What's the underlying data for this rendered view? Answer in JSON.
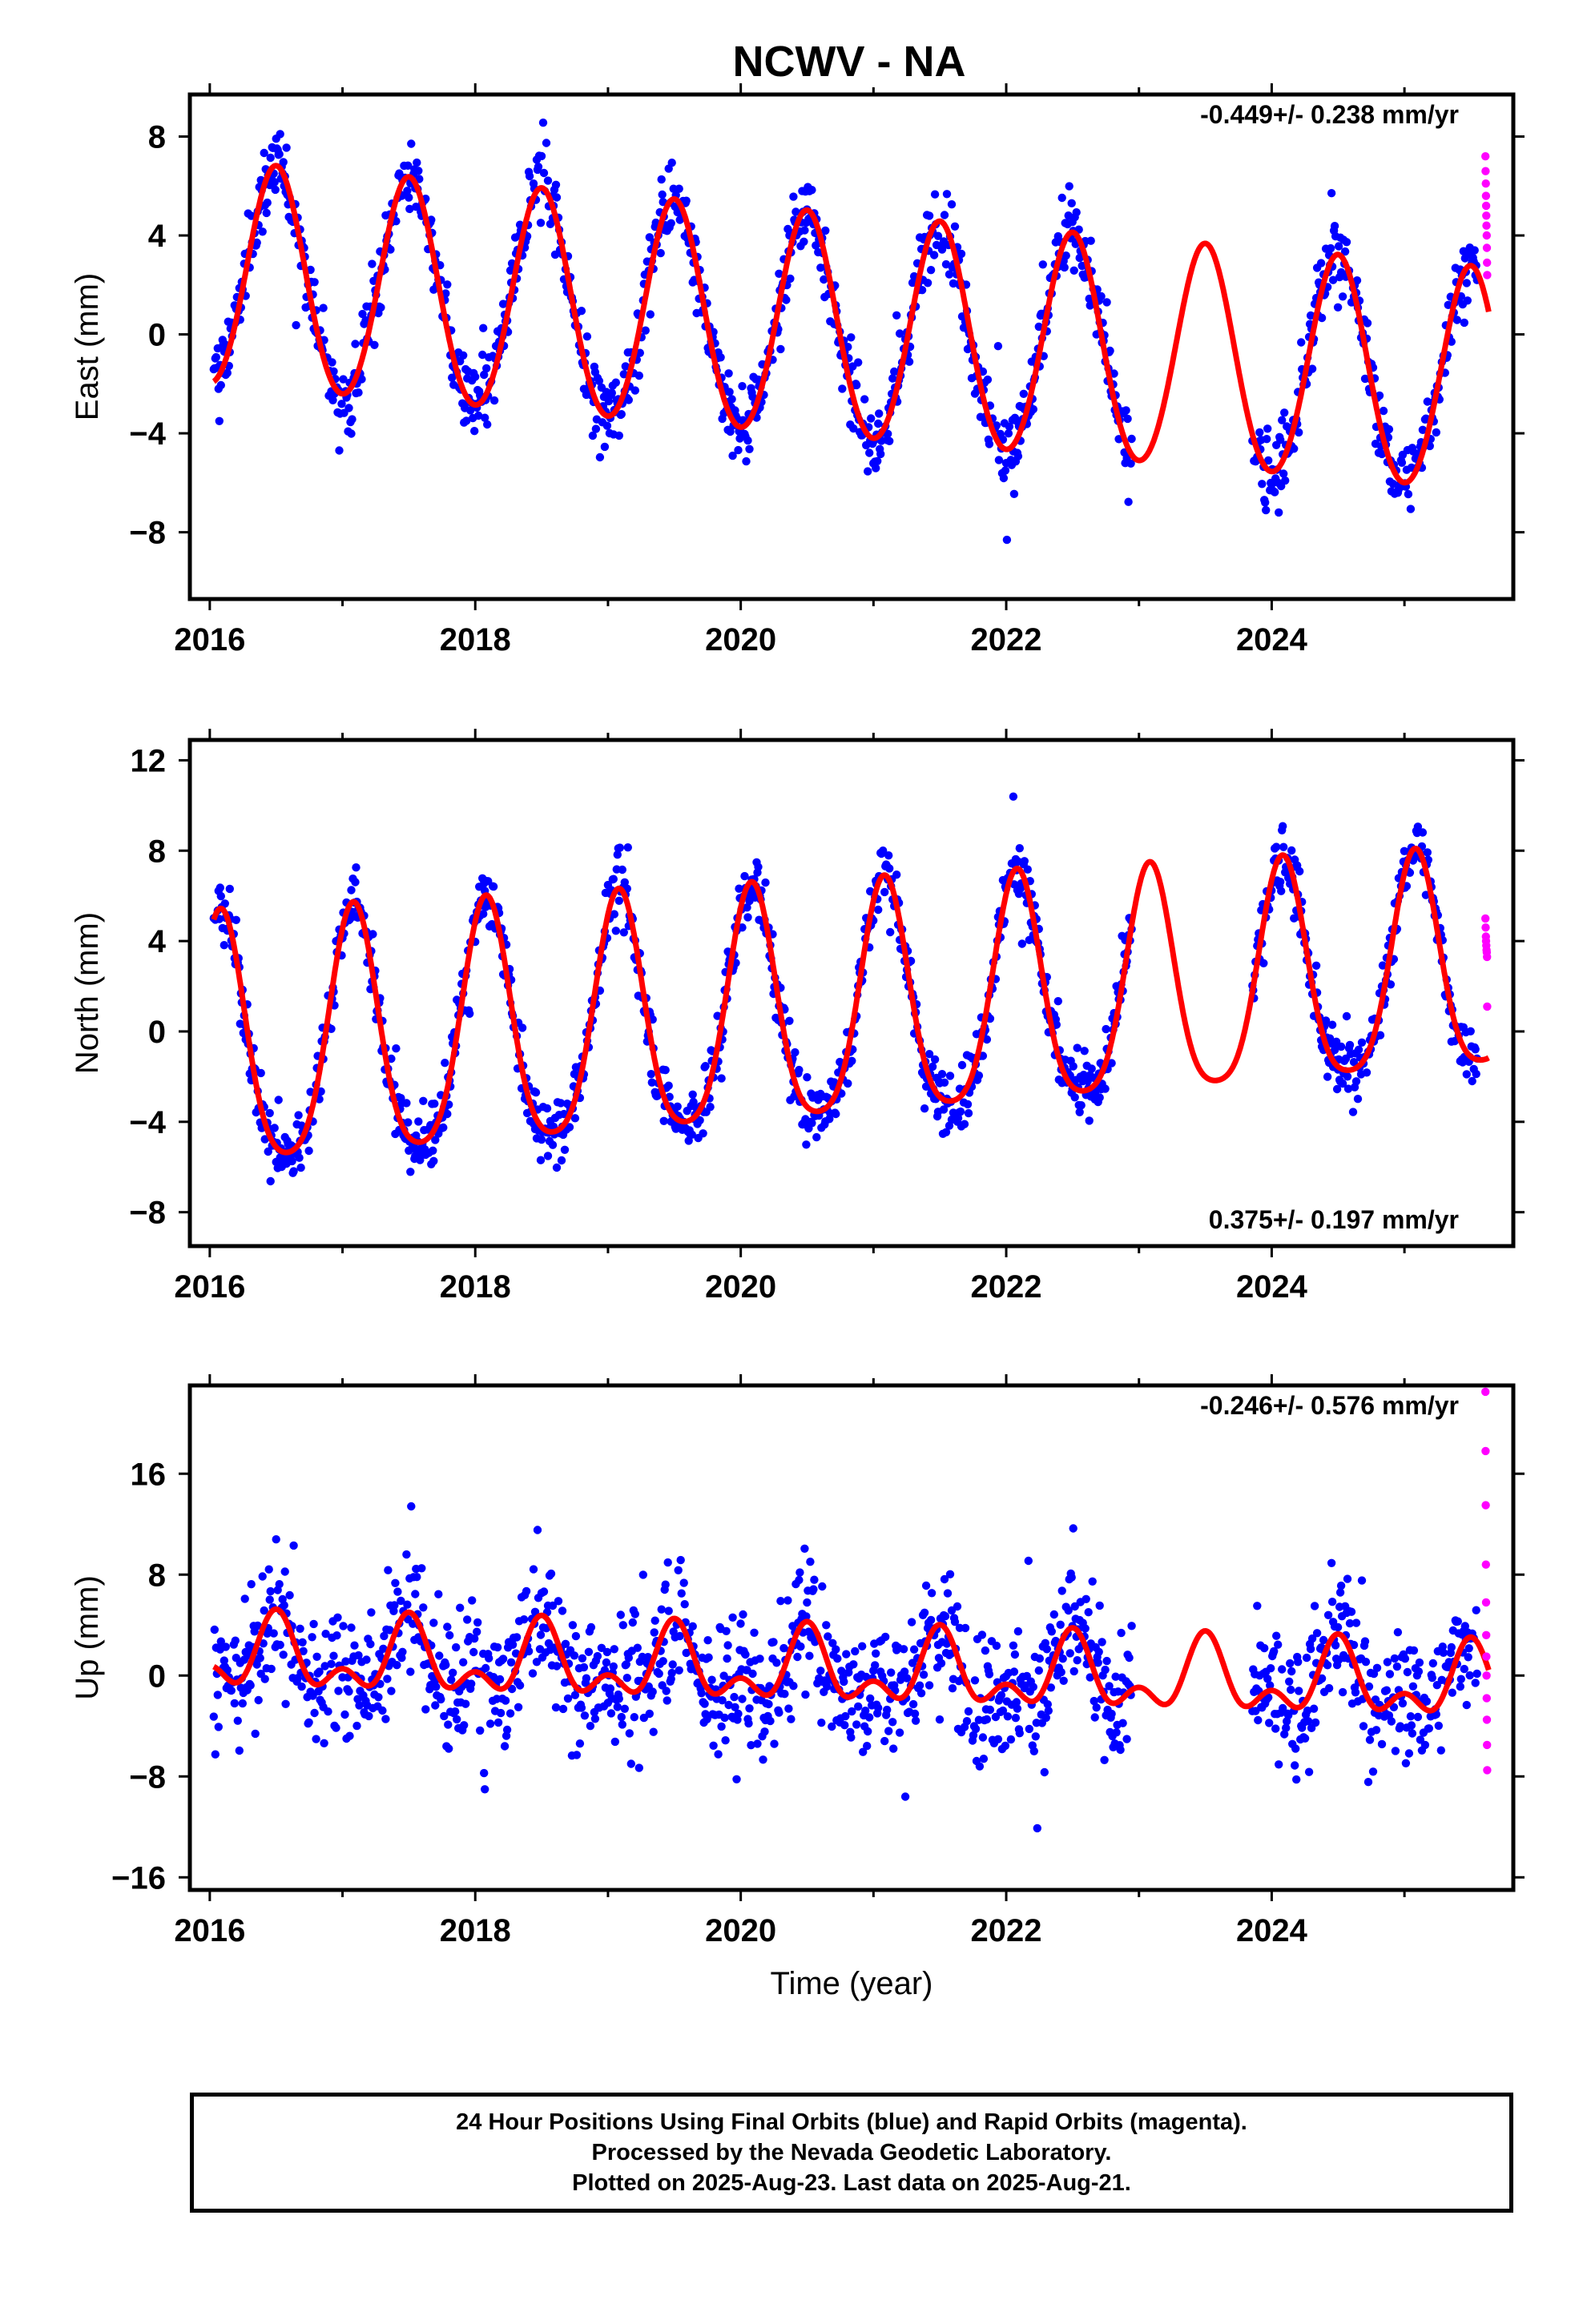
{
  "title": "NCWV - NA",
  "colors": {
    "final": "#0000ff",
    "rapid": "#ff00ff",
    "model": "#ff0000",
    "frame": "#000000"
  },
  "footer": {
    "line1": "24 Hour Positions Using Final Orbits (blue) and Rapid Orbits (magenta).",
    "line2": "Processed by the Nevada Geodetic Laboratory.",
    "line3": "Plotted on 2025-Aug-23. Last data on 2025-Aug-21."
  },
  "chart_data": [
    {
      "type": "scatter",
      "component": "east",
      "ylabel": "East (mm)",
      "xlabel": "",
      "xlim": [
        2015.85,
        2025.82
      ],
      "ylim": [
        -10.7,
        9.7
      ],
      "xticks": [
        "2016",
        "2018",
        "2020",
        "2022",
        "2024"
      ],
      "yticks": [
        "8",
        "4",
        "0",
        "−4",
        "−8"
      ],
      "rate_label": "-0.449+/- 0.238 mm/yr",
      "rate_position": "top-right",
      "model": {
        "offset": 0.5,
        "rate": -0.449,
        "annual": -4.5,
        "annual_decay": 0.0,
        "semiannual": 0.25,
        "phase_days": 0
      },
      "scatter": {
        "noise": 1.2,
        "spikes": 3.0
      },
      "rapid": [
        7.2,
        6.6,
        6.1,
        5.6,
        5.2,
        4.8,
        4.4,
        4.0,
        3.5,
        2.9,
        2.4
      ],
      "series": [
        {
          "name": "Final Orbits (blue)",
          "x_start": 2016.03,
          "x_end": 2025.55,
          "gap": [
            2022.95,
            2023.85
          ]
        },
        {
          "name": "Rapid Orbits (magenta)",
          "x_start": 2025.55,
          "x_end": 2025.64
        }
      ]
    },
    {
      "type": "scatter",
      "component": "north",
      "ylabel": "North (mm)",
      "xlabel": "",
      "xlim": [
        2015.85,
        2025.82
      ],
      "ylim": [
        -9.5,
        12.9
      ],
      "xticks": [
        "2016",
        "2018",
        "2020",
        "2022",
        "2024"
      ],
      "yticks": [
        "12",
        "8",
        "4",
        "0",
        "−4",
        "−8"
      ],
      "rate_label": "0.375+/- 0.197 mm/yr",
      "rate_position": "bottom-right",
      "model": {
        "offset": 0.5,
        "rate": 0.375,
        "annual": 5.2,
        "annual_decay": -0.08,
        "semiannual": 0.9,
        "phase_days": 30
      },
      "scatter": {
        "noise": 1.1,
        "spikes": 2.5
      },
      "rapid": [
        5.0,
        4.6,
        4.2,
        4.0,
        3.8,
        3.6,
        3.5,
        3.3,
        1.1
      ],
      "series": [
        {
          "name": "Final Orbits (blue)",
          "x_start": 2016.03,
          "x_end": 2025.55,
          "gap": [
            2022.95,
            2023.85
          ]
        },
        {
          "name": "Rapid Orbits (magenta)",
          "x_start": 2025.55,
          "x_end": 2025.64
        }
      ]
    },
    {
      "type": "scatter",
      "component": "up",
      "ylabel": "Up (mm)",
      "xlabel": "Time (year)",
      "xlim": [
        2015.85,
        2025.82
      ],
      "ylim": [
        -17.0,
        23.0
      ],
      "xticks": [
        "2016",
        "2018",
        "2020",
        "2022",
        "2024"
      ],
      "yticks": [
        "16",
        "8",
        "0",
        "−8",
        "−16"
      ],
      "rate_label": "-0.246+/- 0.576 mm/yr",
      "rate_position": "top-right",
      "model": {
        "offset": 0.5,
        "rate": -0.246,
        "annual": -2.3,
        "annual_decay": 0.0,
        "semiannual": 1.6,
        "phase_days": 0
      },
      "scatter": {
        "noise": 4.0,
        "spikes": 8.0
      },
      "rapid": [
        22.5,
        17.8,
        13.5,
        8.8,
        5.8,
        3.2,
        1.5,
        0.0,
        -1.8,
        -3.5,
        -5.5,
        -7.5
      ],
      "series": [
        {
          "name": "Final Orbits (blue)",
          "x_start": 2016.03,
          "x_end": 2025.55,
          "gap": [
            2022.95,
            2023.85
          ]
        },
        {
          "name": "Rapid Orbits (magenta)",
          "x_start": 2025.55,
          "x_end": 2025.64
        }
      ]
    }
  ]
}
